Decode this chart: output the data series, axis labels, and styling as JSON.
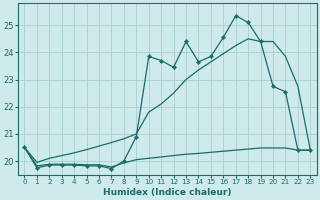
{
  "xlabel": "Humidex (Indice chaleur)",
  "bg_color": "#ceeaea",
  "grid_color": "#aacece",
  "line_color": "#1a6b6b",
  "xlim": [
    -0.5,
    23.5
  ],
  "ylim": [
    19.5,
    25.8
  ],
  "yticks": [
    20,
    21,
    22,
    23,
    24,
    25
  ],
  "xticks": [
    0,
    1,
    2,
    3,
    4,
    5,
    6,
    7,
    8,
    9,
    10,
    11,
    12,
    13,
    14,
    15,
    16,
    17,
    18,
    19,
    20,
    21,
    22,
    23
  ],
  "x_jagged": [
    0,
    1,
    2,
    3,
    4,
    5,
    6,
    7,
    8,
    9,
    10,
    11,
    12,
    13,
    14,
    15,
    16,
    17,
    18,
    19,
    20,
    21,
    22,
    23
  ],
  "y_jagged": [
    20.5,
    19.75,
    19.85,
    19.85,
    19.85,
    19.82,
    19.82,
    19.72,
    20.0,
    20.9,
    23.85,
    23.7,
    23.45,
    24.4,
    23.65,
    23.85,
    24.55,
    25.35,
    25.1,
    24.4,
    22.75,
    22.55,
    20.4,
    20.4
  ],
  "x_upper": [
    0,
    1,
    2,
    3,
    4,
    5,
    6,
    7,
    8,
    9,
    10,
    11,
    12,
    13,
    14,
    15,
    16,
    17,
    18,
    19,
    20,
    21,
    22,
    23
  ],
  "y_upper": [
    20.5,
    19.95,
    20.1,
    20.2,
    20.3,
    20.42,
    20.55,
    20.68,
    20.82,
    21.0,
    21.8,
    22.1,
    22.5,
    23.0,
    23.35,
    23.65,
    23.95,
    24.25,
    24.5,
    24.4,
    24.4,
    23.85,
    22.75,
    20.4
  ],
  "x_lower": [
    0,
    1,
    2,
    3,
    4,
    5,
    6,
    7,
    8,
    9,
    10,
    11,
    12,
    13,
    14,
    15,
    16,
    17,
    18,
    19,
    20,
    21,
    22,
    23
  ],
  "y_lower": [
    20.5,
    19.82,
    19.88,
    19.88,
    19.88,
    19.86,
    19.86,
    19.78,
    19.93,
    20.05,
    20.1,
    20.15,
    20.2,
    20.25,
    20.28,
    20.32,
    20.36,
    20.4,
    20.44,
    20.48,
    20.48,
    20.48,
    20.4,
    20.4
  ]
}
